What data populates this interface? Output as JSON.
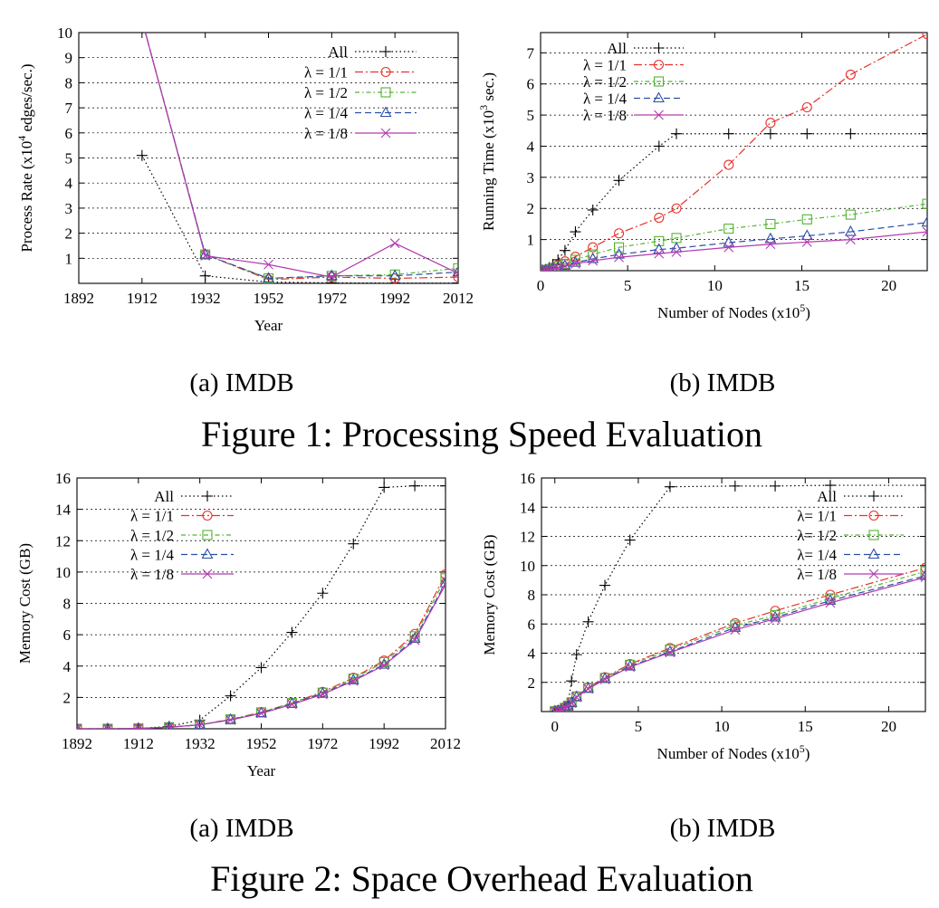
{
  "figure1": {
    "caption": "Figure 1: Processing Speed Evaluation",
    "sub_a": "(a)  IMDB",
    "sub_b": "(b)  IMDB"
  },
  "figure2": {
    "caption": "Figure 2: Space Overhead Evaluation",
    "sub_a": "(a)  IMDB",
    "sub_b": "(b)  IMDB"
  },
  "colors": {
    "All": "#000000",
    "lambda_1_1": "#e8322c",
    "lambda_1_2": "#53b332",
    "lambda_1_4": "#2a4fa8",
    "lambda_1_8": "#b23ab0",
    "grid": "#000000"
  },
  "chart_data": [
    {
      "id": "fig1a",
      "type": "line",
      "xlabel": "Year",
      "ylabel": "Process Rate (x10^4 edges/sec.)",
      "xlim": [
        1892,
        2012
      ],
      "ylim": [
        0,
        10
      ],
      "xticks": [
        1892,
        1912,
        1932,
        1952,
        1972,
        1992,
        2012
      ],
      "yticks": [
        1,
        2,
        3,
        4,
        5,
        6,
        7,
        8,
        9,
        10
      ],
      "grid": "horizontal dashed",
      "legend_position": "top-right",
      "series": [
        {
          "name": "All",
          "marker": "plus",
          "dash": "1.5,3",
          "x": [
            1912,
            1932,
            1952,
            1972,
            1992,
            2012
          ],
          "y": [
            5.1,
            0.3,
            0.05,
            0.02,
            0.01,
            0.01
          ]
        },
        {
          "name": "λ = 1/1",
          "marker": "circle",
          "dash": "9,3,2,3",
          "x": [
            1912,
            1932,
            1952,
            1972,
            1992,
            2012
          ],
          "y": [
            10.5,
            1.15,
            0.15,
            0.25,
            0.2,
            0.25
          ]
        },
        {
          "name": "λ = 1/2",
          "marker": "square",
          "dash": "5,3,1.5,3",
          "x": [
            1912,
            1932,
            1952,
            1972,
            1992,
            2012
          ],
          "y": [
            10.5,
            1.15,
            0.2,
            0.3,
            0.35,
            0.6
          ]
        },
        {
          "name": "λ = 1/4",
          "marker": "triangle",
          "dash": "7,4",
          "x": [
            1912,
            1932,
            1952,
            1972,
            1992,
            2012
          ],
          "y": [
            10.5,
            1.15,
            0.2,
            0.3,
            0.3,
            0.45
          ]
        },
        {
          "name": "λ = 1/8",
          "marker": "cross",
          "dash": "",
          "x": [
            1912,
            1932,
            1952,
            1972,
            1992,
            2012
          ],
          "y": [
            10.5,
            1.1,
            0.75,
            0.25,
            1.6,
            0.4
          ]
        }
      ]
    },
    {
      "id": "fig1b",
      "type": "line",
      "xlabel": "Number of Nodes (x10^5)",
      "ylabel": "Running Time (x10^3 sec.)",
      "xlim": [
        0,
        22.2
      ],
      "ylim": [
        0,
        7.65
      ],
      "xticks": [
        0,
        5,
        10,
        15,
        20
      ],
      "yticks": [
        1,
        2,
        3,
        4,
        5,
        6,
        7
      ],
      "grid": "horizontal dashed",
      "legend_position": "top-left",
      "series": [
        {
          "name": "All",
          "marker": "plus",
          "dash": "1.5,3",
          "x": [
            0.1,
            0.3,
            0.5,
            0.7,
            1.0,
            1.4,
            2.0,
            3.0,
            4.5,
            6.8,
            7.8,
            10.8,
            13.2,
            15.3,
            17.8,
            22.2
          ],
          "y": [
            0.01,
            0.04,
            0.1,
            0.2,
            0.35,
            0.65,
            1.25,
            1.95,
            2.9,
            4.0,
            4.4,
            4.4,
            4.4,
            4.4,
            4.4,
            4.4
          ]
        },
        {
          "name": "λ = 1/1",
          "marker": "circle",
          "dash": "9,3,2,3",
          "x": [
            0.1,
            0.3,
            0.5,
            0.7,
            1.0,
            1.4,
            2.0,
            3.0,
            4.5,
            6.8,
            7.8,
            10.8,
            13.2,
            15.3,
            17.8,
            22.2
          ],
          "y": [
            0.01,
            0.03,
            0.06,
            0.1,
            0.18,
            0.3,
            0.45,
            0.75,
            1.2,
            1.7,
            2.0,
            3.4,
            4.75,
            5.25,
            6.3,
            7.6
          ]
        },
        {
          "name": "λ = 1/2",
          "marker": "square",
          "dash": "5,3,1.5,3",
          "x": [
            0.1,
            0.3,
            0.5,
            0.7,
            1.0,
            1.4,
            2.0,
            3.0,
            4.5,
            6.8,
            7.8,
            10.8,
            13.2,
            15.3,
            17.8,
            22.2
          ],
          "y": [
            0.01,
            0.02,
            0.04,
            0.08,
            0.14,
            0.22,
            0.35,
            0.52,
            0.75,
            0.95,
            1.05,
            1.35,
            1.5,
            1.65,
            1.8,
            2.15
          ]
        },
        {
          "name": "λ = 1/4",
          "marker": "triangle",
          "dash": "7,4",
          "x": [
            0.1,
            0.3,
            0.5,
            0.7,
            1.0,
            1.4,
            2.0,
            3.0,
            4.5,
            6.8,
            7.8,
            10.8,
            13.2,
            15.3,
            17.8,
            22.2
          ],
          "y": [
            0.01,
            0.02,
            0.03,
            0.06,
            0.1,
            0.16,
            0.26,
            0.38,
            0.52,
            0.68,
            0.72,
            0.9,
            1.02,
            1.12,
            1.25,
            1.55
          ]
        },
        {
          "name": "λ = 1/8",
          "marker": "cross",
          "dash": "",
          "x": [
            0.1,
            0.3,
            0.5,
            0.7,
            1.0,
            1.4,
            2.0,
            3.0,
            4.5,
            6.8,
            7.8,
            10.8,
            13.2,
            15.3,
            17.8,
            22.2
          ],
          "y": [
            0.01,
            0.02,
            0.03,
            0.05,
            0.09,
            0.14,
            0.22,
            0.32,
            0.43,
            0.55,
            0.6,
            0.75,
            0.85,
            0.92,
            1.0,
            1.25
          ]
        }
      ]
    },
    {
      "id": "fig2a",
      "type": "line",
      "xlabel": "Year",
      "ylabel": "Memory Cost (GB)",
      "xlim": [
        1892,
        2012
      ],
      "ylim": [
        0,
        16
      ],
      "xticks": [
        1892,
        1912,
        1932,
        1952,
        1972,
        1992,
        2012
      ],
      "yticks": [
        2,
        4,
        6,
        8,
        10,
        12,
        14,
        16
      ],
      "grid": "horizontal dashed",
      "legend_position": "top-left",
      "series": [
        {
          "name": "All",
          "marker": "plus",
          "dash": "1.5,3",
          "x": [
            1892,
            1902,
            1912,
            1922,
            1932,
            1942,
            1952,
            1962,
            1972,
            1982,
            1992,
            2002,
            2012
          ],
          "y": [
            0,
            0,
            0.02,
            0.15,
            0.55,
            2.1,
            3.9,
            6.15,
            8.65,
            11.8,
            15.4,
            15.5,
            15.5
          ]
        },
        {
          "name": "λ = 1/1",
          "marker": "circle",
          "dash": "9,3,2,3",
          "x": [
            1892,
            1902,
            1912,
            1922,
            1932,
            1942,
            1952,
            1962,
            1972,
            1982,
            1992,
            2002,
            2012
          ],
          "y": [
            0,
            0,
            0.02,
            0.1,
            0.25,
            0.6,
            1.05,
            1.65,
            2.35,
            3.25,
            4.35,
            6.05,
            9.85
          ]
        },
        {
          "name": "λ = 1/2",
          "marker": "square",
          "dash": "5,3,1.5,3",
          "x": [
            1892,
            1902,
            1912,
            1922,
            1932,
            1942,
            1952,
            1962,
            1972,
            1982,
            1992,
            2002,
            2012
          ],
          "y": [
            0,
            0,
            0.02,
            0.1,
            0.25,
            0.6,
            1.05,
            1.65,
            2.3,
            3.2,
            4.25,
            5.9,
            9.6
          ]
        },
        {
          "name": "λ = 1/4",
          "marker": "triangle",
          "dash": "7,4",
          "x": [
            1892,
            1902,
            1912,
            1922,
            1932,
            1942,
            1952,
            1962,
            1972,
            1982,
            1992,
            2002,
            2012
          ],
          "y": [
            0,
            0,
            0.02,
            0.1,
            0.25,
            0.58,
            1.0,
            1.6,
            2.25,
            3.1,
            4.1,
            5.75,
            9.3
          ]
        },
        {
          "name": "λ = 1/8",
          "marker": "cross",
          "dash": "",
          "x": [
            1892,
            1902,
            1912,
            1922,
            1932,
            1942,
            1952,
            1962,
            1972,
            1982,
            1992,
            2002,
            2012
          ],
          "y": [
            0,
            0,
            0.02,
            0.1,
            0.25,
            0.56,
            0.98,
            1.55,
            2.2,
            3.05,
            4.05,
            5.65,
            9.2
          ]
        }
      ]
    },
    {
      "id": "fig2b",
      "type": "line",
      "xlabel": "Number of Nodes (x10^5)",
      "ylabel": "Memory Cost (GB)",
      "xlim": [
        -0.8,
        22.2
      ],
      "ylim": [
        0,
        16
      ],
      "xticks": [
        0,
        5,
        10,
        15,
        20
      ],
      "yticks": [
        2,
        4,
        6,
        8,
        10,
        12,
        14,
        16
      ],
      "grid": "horizontal dashed",
      "legend_position": "top-right",
      "series": [
        {
          "name": "All",
          "marker": "plus",
          "dash": "1.5,3",
          "x": [
            0,
            0.2,
            0.4,
            0.6,
            0.8,
            1.0,
            1.3,
            2.0,
            3.0,
            4.5,
            6.9,
            10.8,
            13.2,
            16.5,
            22.2
          ],
          "y": [
            0.02,
            0.05,
            0.15,
            0.3,
            0.6,
            2.1,
            3.9,
            6.15,
            8.65,
            11.75,
            15.4,
            15.45,
            15.45,
            15.5,
            15.5
          ]
        },
        {
          "name": "λ= 1/1",
          "marker": "circle",
          "dash": "9,3,2,3",
          "x": [
            0,
            0.2,
            0.4,
            0.6,
            0.8,
            1.0,
            1.3,
            2.0,
            3.0,
            4.5,
            6.9,
            10.8,
            13.2,
            16.5,
            22.2
          ],
          "y": [
            0.02,
            0.05,
            0.1,
            0.25,
            0.4,
            0.65,
            1.05,
            1.65,
            2.35,
            3.25,
            4.35,
            6.05,
            6.9,
            8.0,
            9.85
          ]
        },
        {
          "name": "λ= 1/2",
          "marker": "square",
          "dash": "5,3,1.5,3",
          "x": [
            0,
            0.2,
            0.4,
            0.6,
            0.8,
            1.0,
            1.3,
            2.0,
            3.0,
            4.5,
            6.9,
            10.8,
            13.2,
            16.5,
            22.2
          ],
          "y": [
            0.02,
            0.05,
            0.1,
            0.25,
            0.4,
            0.63,
            1.03,
            1.62,
            2.3,
            3.2,
            4.25,
            5.9,
            6.6,
            7.75,
            9.6
          ]
        },
        {
          "name": "λ= 1/4",
          "marker": "triangle",
          "dash": "7,4",
          "x": [
            0,
            0.2,
            0.4,
            0.6,
            0.8,
            1.0,
            1.3,
            2.0,
            3.0,
            4.5,
            6.9,
            10.8,
            13.2,
            16.5,
            22.2
          ],
          "y": [
            0.02,
            0.05,
            0.1,
            0.24,
            0.38,
            0.6,
            1.0,
            1.58,
            2.25,
            3.1,
            4.1,
            5.75,
            6.45,
            7.6,
            9.3
          ]
        },
        {
          "name": "λ= 1/8",
          "marker": "cross",
          "dash": "",
          "x": [
            0,
            0.2,
            0.4,
            0.6,
            0.8,
            1.0,
            1.3,
            2.0,
            3.0,
            4.5,
            6.9,
            10.8,
            13.2,
            16.5,
            22.2
          ],
          "y": [
            0.02,
            0.05,
            0.1,
            0.24,
            0.37,
            0.58,
            0.98,
            1.55,
            2.2,
            3.05,
            4.05,
            5.6,
            6.35,
            7.45,
            9.2
          ]
        }
      ]
    }
  ]
}
